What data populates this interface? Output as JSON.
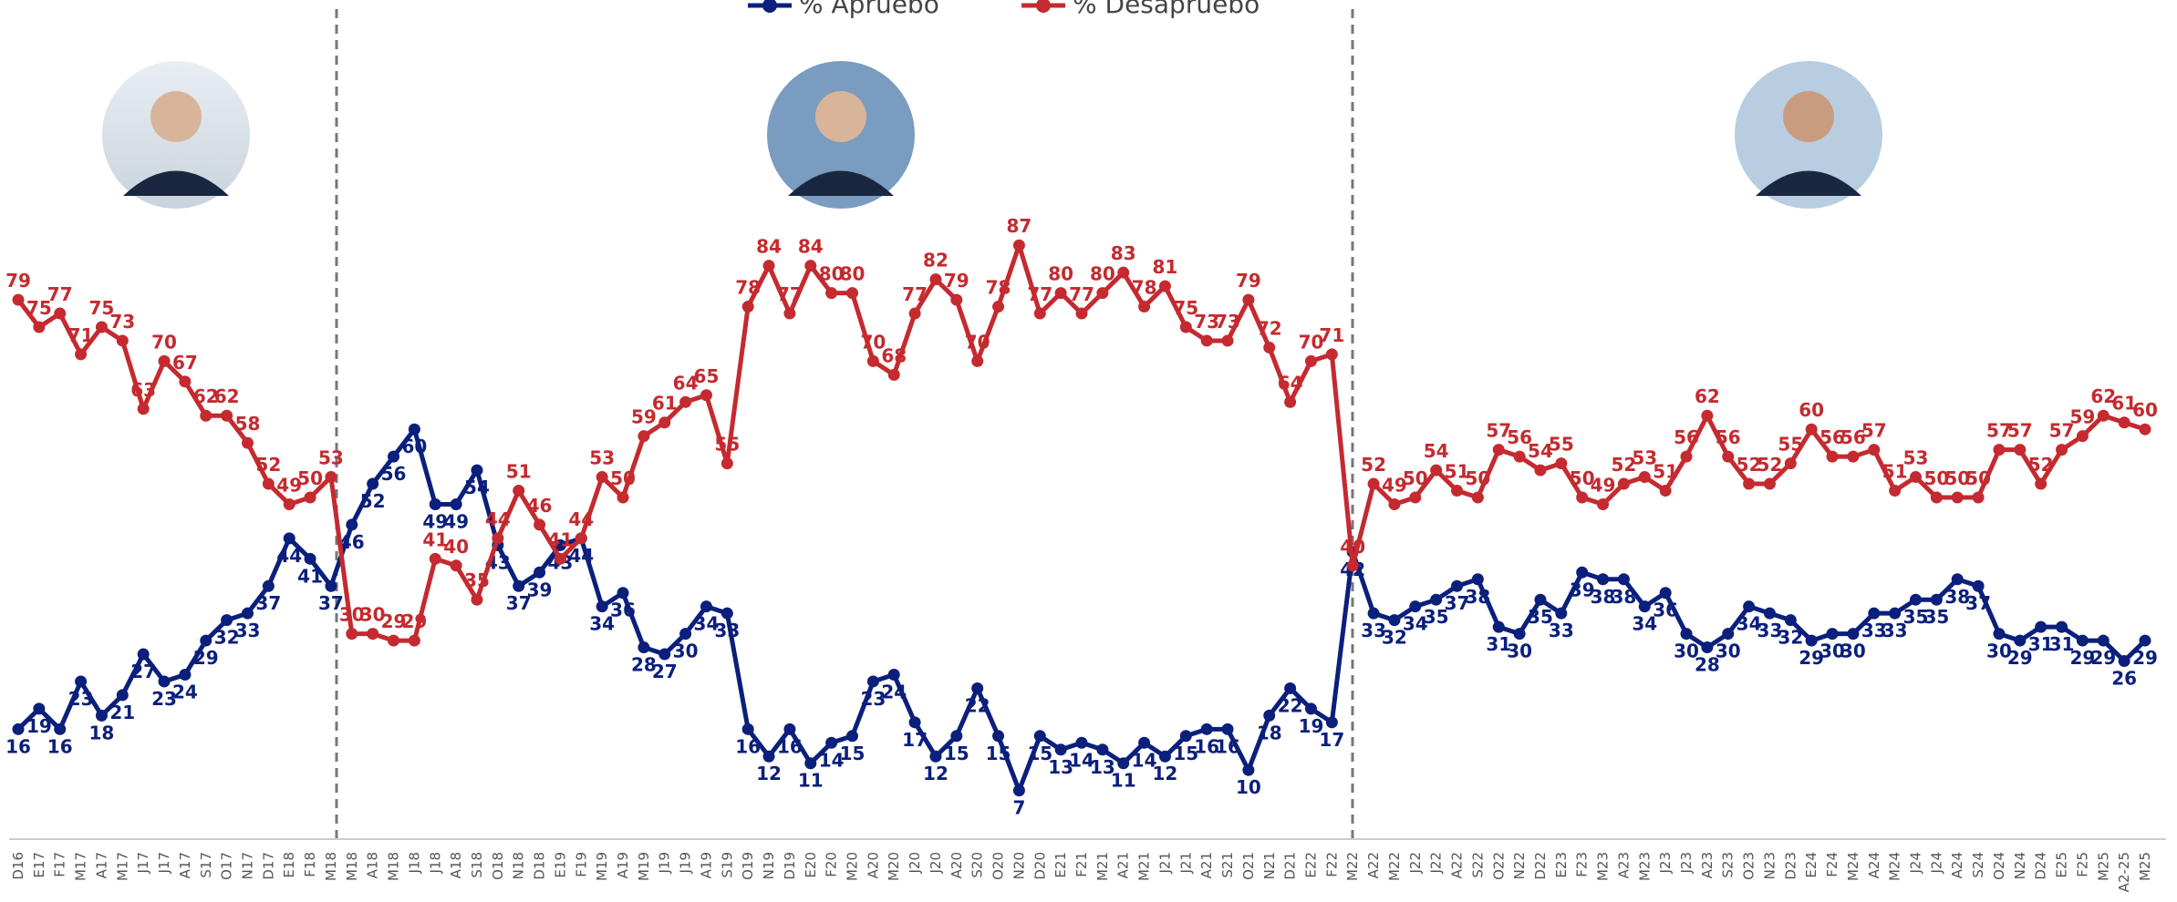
{
  "chart_data": {
    "type": "line",
    "categories": [
      "D16",
      "E17",
      "F17",
      "M17",
      "A17",
      "M17",
      "J17",
      "J17",
      "A17",
      "S17",
      "O17",
      "N17",
      "D17",
      "E18",
      "F18",
      "M18",
      "M18",
      "A18",
      "M18",
      "J18",
      "J18",
      "A18",
      "S18",
      "O18",
      "N18",
      "D18",
      "E19",
      "F19",
      "M19",
      "A19",
      "M19",
      "J19",
      "J19",
      "A19",
      "S19",
      "O19",
      "N19",
      "D19",
      "E20",
      "F20",
      "M20",
      "A20",
      "M20",
      "J20",
      "J20",
      "A20",
      "S20",
      "O20",
      "N20",
      "D20",
      "E21",
      "F21",
      "M21",
      "A21",
      "M21",
      "J21",
      "J21",
      "A21",
      "S21",
      "O21",
      "N21",
      "D21",
      "E22",
      "F22",
      "M22",
      "A22",
      "M22",
      "J22",
      "J22",
      "A22",
      "S22",
      "O22",
      "N22",
      "D22",
      "E23",
      "F23",
      "M23",
      "A23",
      "M23",
      "J23",
      "J23",
      "A23",
      "S23",
      "O23",
      "N23",
      "D23",
      "E24",
      "F24",
      "M24",
      "A24",
      "M24",
      "J24",
      "J24",
      "A24",
      "S24",
      "O24",
      "N24",
      "D24",
      "E25",
      "F25",
      "M25",
      "A2-25",
      "M25"
    ],
    "series": [
      {
        "name": "% Apruebo",
        "color": "#0b1f7c",
        "values": [
          16,
          19,
          16,
          23,
          18,
          21,
          27,
          23,
          24,
          29,
          32,
          33,
          37,
          44,
          41,
          37,
          46,
          52,
          56,
          60,
          49,
          49,
          54,
          43,
          37,
          39,
          43,
          44,
          34,
          36,
          28,
          27,
          30,
          34,
          33,
          16,
          12,
          16,
          11,
          14,
          15,
          23,
          24,
          17,
          12,
          15,
          22,
          15,
          7,
          15,
          13,
          14,
          13,
          11,
          14,
          12,
          15,
          16,
          16,
          10,
          18,
          22,
          19,
          17,
          42,
          33,
          32,
          34,
          35,
          37,
          38,
          31,
          30,
          35,
          33,
          39,
          38,
          38,
          34,
          36,
          30,
          28,
          30,
          34,
          33,
          32,
          29,
          30,
          30,
          33,
          33,
          35,
          35,
          38,
          37,
          30,
          29,
          31,
          31,
          29,
          29,
          26,
          29
        ]
      },
      {
        "name": "% Desapruebo",
        "color": "#c42a2f",
        "values": [
          79,
          75,
          77,
          71,
          75,
          73,
          63,
          70,
          67,
          62,
          62,
          58,
          52,
          49,
          50,
          53,
          30,
          30,
          29,
          29,
          41,
          40,
          35,
          44,
          51,
          46,
          41,
          44,
          53,
          50,
          59,
          61,
          64,
          65,
          55,
          78,
          84,
          77,
          84,
          80,
          80,
          70,
          68,
          77,
          82,
          79,
          70,
          78,
          87,
          77,
          80,
          77,
          80,
          83,
          78,
          81,
          75,
          73,
          73,
          79,
          72,
          64,
          70,
          71,
          40,
          52,
          49,
          50,
          54,
          51,
          50,
          57,
          56,
          54,
          55,
          50,
          49,
          52,
          53,
          51,
          56,
          62,
          56,
          52,
          52,
          55,
          60,
          56,
          56,
          57,
          51,
          53,
          50,
          50,
          50,
          57,
          57,
          52,
          57,
          59,
          62,
          61,
          60
        ]
      }
    ]
  }
}
